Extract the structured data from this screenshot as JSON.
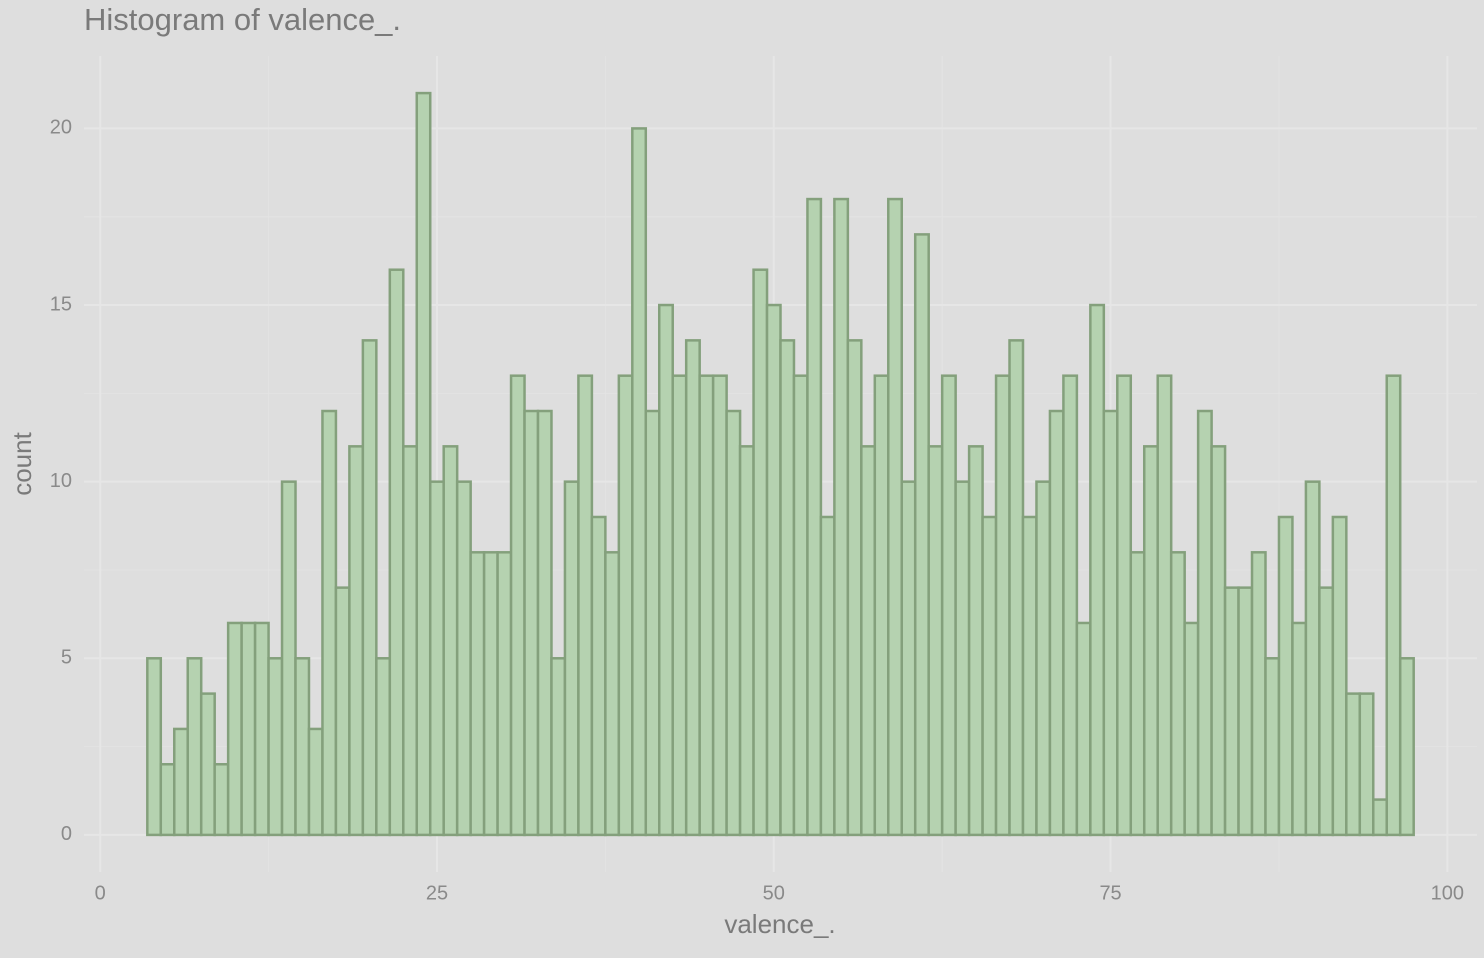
{
  "chart_data": {
    "type": "histogram",
    "title": "Histogram of valence_.",
    "xlabel": "valence_.",
    "ylabel": "count",
    "bins": [
      3.5,
      4.5,
      5.5,
      6.5,
      7.5,
      8.5,
      9.5,
      10.5,
      11.5,
      12.5,
      13.5,
      14.5,
      15.5,
      16.5,
      17.5,
      18.5,
      19.5,
      20.5,
      21.5,
      22.5,
      23.5,
      24.5,
      25.5,
      26.5,
      27.5,
      28.5,
      29.5,
      30.5,
      31.5,
      32.5,
      33.5,
      34.5,
      35.5,
      36.5,
      37.5,
      38.5,
      39.5,
      40.5,
      41.5,
      42.5,
      43.5,
      44.5,
      45.5,
      46.5,
      47.5,
      48.5,
      49.5,
      50.5,
      51.5,
      52.5,
      53.5,
      54.5,
      55.5,
      56.5,
      57.5,
      58.5,
      59.5,
      60.5,
      61.5,
      62.5,
      63.5,
      64.5,
      65.5,
      66.5,
      67.5,
      68.5,
      69.5,
      70.5,
      71.5,
      72.5,
      73.5,
      74.5,
      75.5,
      76.5,
      77.5,
      78.5,
      79.5,
      80.5,
      81.5,
      82.5,
      83.5,
      84.5,
      85.5,
      86.5,
      87.5,
      88.5,
      89.5,
      90.5,
      91.5,
      92.5,
      93.5,
      94.5,
      95.5,
      96.5,
      97.5
    ],
    "counts": [
      5,
      2,
      3,
      5,
      4,
      2,
      6,
      6,
      6,
      5,
      10,
      5,
      3,
      12,
      7,
      11,
      14,
      5,
      16,
      11,
      21,
      10,
      11,
      10,
      8,
      8,
      8,
      13,
      12,
      12,
      5,
      10,
      13,
      9,
      8,
      13,
      20,
      12,
      15,
      13,
      14,
      13,
      13,
      12,
      11,
      16,
      15,
      14,
      13,
      18,
      9,
      18,
      14,
      11,
      13,
      18,
      10,
      17,
      11,
      13,
      10,
      11,
      9,
      13,
      14,
      9,
      10,
      12,
      13,
      6,
      15,
      12,
      13,
      8,
      11,
      13,
      8,
      6,
      12,
      11,
      7,
      7,
      8,
      5,
      9,
      6,
      10,
      7,
      9,
      4,
      4,
      1,
      13,
      5
    ],
    "color": "#b5d2b0",
    "edgecolor": "#84a07c",
    "xlim": [
      -1.2,
      102.2
    ],
    "ylim": [
      -1.05,
      22.05
    ],
    "xticks": [
      0,
      25,
      50,
      75,
      100
    ],
    "yticks": [
      0,
      5,
      10,
      15,
      20
    ],
    "grid": true
  }
}
